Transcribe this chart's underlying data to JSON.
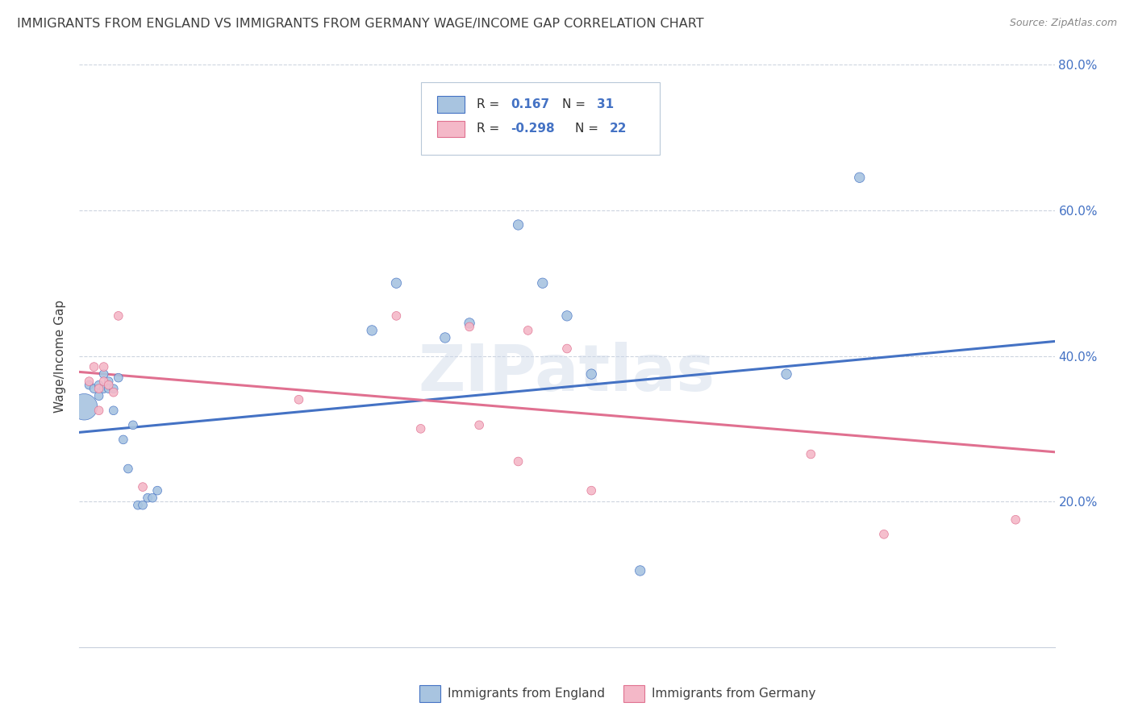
{
  "title": "IMMIGRANTS FROM ENGLAND VS IMMIGRANTS FROM GERMANY WAGE/INCOME GAP CORRELATION CHART",
  "source": "Source: ZipAtlas.com",
  "ylabel": "Wage/Income Gap",
  "watermark": "ZIPatlas",
  "england_color": "#a8c4e0",
  "germany_color": "#f4b8c8",
  "england_line_color": "#4472c4",
  "germany_line_color": "#e07090",
  "title_color": "#404040",
  "axis_color": "#4472c4",
  "grid_color": "#c8d0dc",
  "xlim": [
    0.0,
    0.2
  ],
  "ylim": [
    0.0,
    0.8
  ],
  "xticks_show": [
    0.0,
    0.2
  ],
  "yticks": [
    0.2,
    0.4,
    0.6,
    0.8
  ],
  "england_x": [
    0.001,
    0.002,
    0.003,
    0.004,
    0.004,
    0.005,
    0.005,
    0.006,
    0.006,
    0.007,
    0.007,
    0.008,
    0.009,
    0.01,
    0.011,
    0.012,
    0.013,
    0.014,
    0.015,
    0.016,
    0.06,
    0.065,
    0.075,
    0.08,
    0.09,
    0.095,
    0.1,
    0.105,
    0.115,
    0.145,
    0.16
  ],
  "england_y": [
    0.33,
    0.36,
    0.355,
    0.345,
    0.36,
    0.375,
    0.355,
    0.365,
    0.355,
    0.355,
    0.325,
    0.37,
    0.285,
    0.245,
    0.305,
    0.195,
    0.195,
    0.205,
    0.205,
    0.215,
    0.435,
    0.5,
    0.425,
    0.445,
    0.58,
    0.5,
    0.455,
    0.375,
    0.105,
    0.375,
    0.645
  ],
  "england_sizes": [
    550,
    60,
    60,
    60,
    60,
    60,
    60,
    60,
    60,
    60,
    60,
    60,
    60,
    60,
    60,
    60,
    60,
    60,
    60,
    60,
    80,
    80,
    80,
    80,
    80,
    80,
    80,
    80,
    80,
    80,
    80
  ],
  "germany_x": [
    0.002,
    0.003,
    0.004,
    0.004,
    0.005,
    0.005,
    0.006,
    0.007,
    0.008,
    0.013,
    0.045,
    0.065,
    0.07,
    0.08,
    0.082,
    0.09,
    0.092,
    0.1,
    0.105,
    0.15,
    0.165,
    0.192
  ],
  "germany_y": [
    0.365,
    0.385,
    0.325,
    0.355,
    0.365,
    0.385,
    0.36,
    0.35,
    0.455,
    0.22,
    0.34,
    0.455,
    0.3,
    0.44,
    0.305,
    0.255,
    0.435,
    0.41,
    0.215,
    0.265,
    0.155,
    0.175
  ],
  "germany_sizes": [
    60,
    60,
    60,
    60,
    60,
    60,
    60,
    60,
    60,
    60,
    60,
    60,
    60,
    60,
    60,
    60,
    60,
    60,
    60,
    60,
    60,
    60
  ],
  "eng_trend_y0": 0.295,
  "eng_trend_y1": 0.42,
  "ger_trend_y0": 0.378,
  "ger_trend_y1": 0.268
}
